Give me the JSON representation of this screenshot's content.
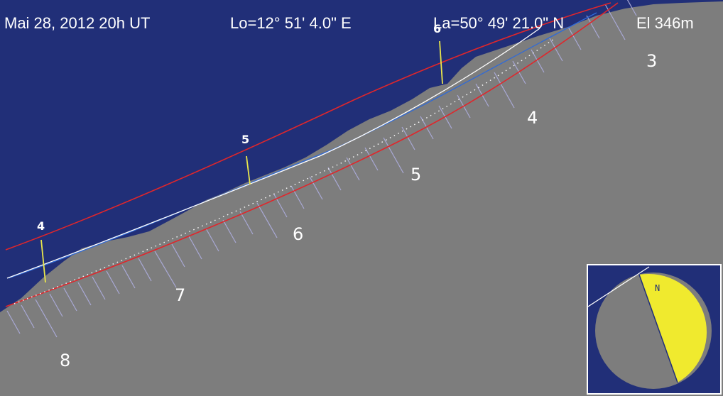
{
  "header": {
    "date": "Mai 28, 2012 20h UT",
    "longitude": "Lo=12° 51' 4.0\" E",
    "latitude": "La=50° 49' 21.0\" N",
    "elevation": "El 346m"
  },
  "colors": {
    "sky": "#212f78",
    "terrain": "#7d7d7d",
    "red_lines": "#e0262b",
    "blue_line": "#2f6ad8",
    "white_line": "#ffffff",
    "yellow_markers": "#e9e64b",
    "tick_lines": "#a9a9d6",
    "compass_lit": "#f0ea2e",
    "compass_dark": "#7d7d7d"
  },
  "path_labels": {
    "top": [
      "4",
      "5",
      "6"
    ],
    "bottom": [
      "8",
      "7",
      "6",
      "5",
      "4",
      "3"
    ]
  },
  "inset": {
    "north_label": "N",
    "lit_fraction": 0.55
  }
}
